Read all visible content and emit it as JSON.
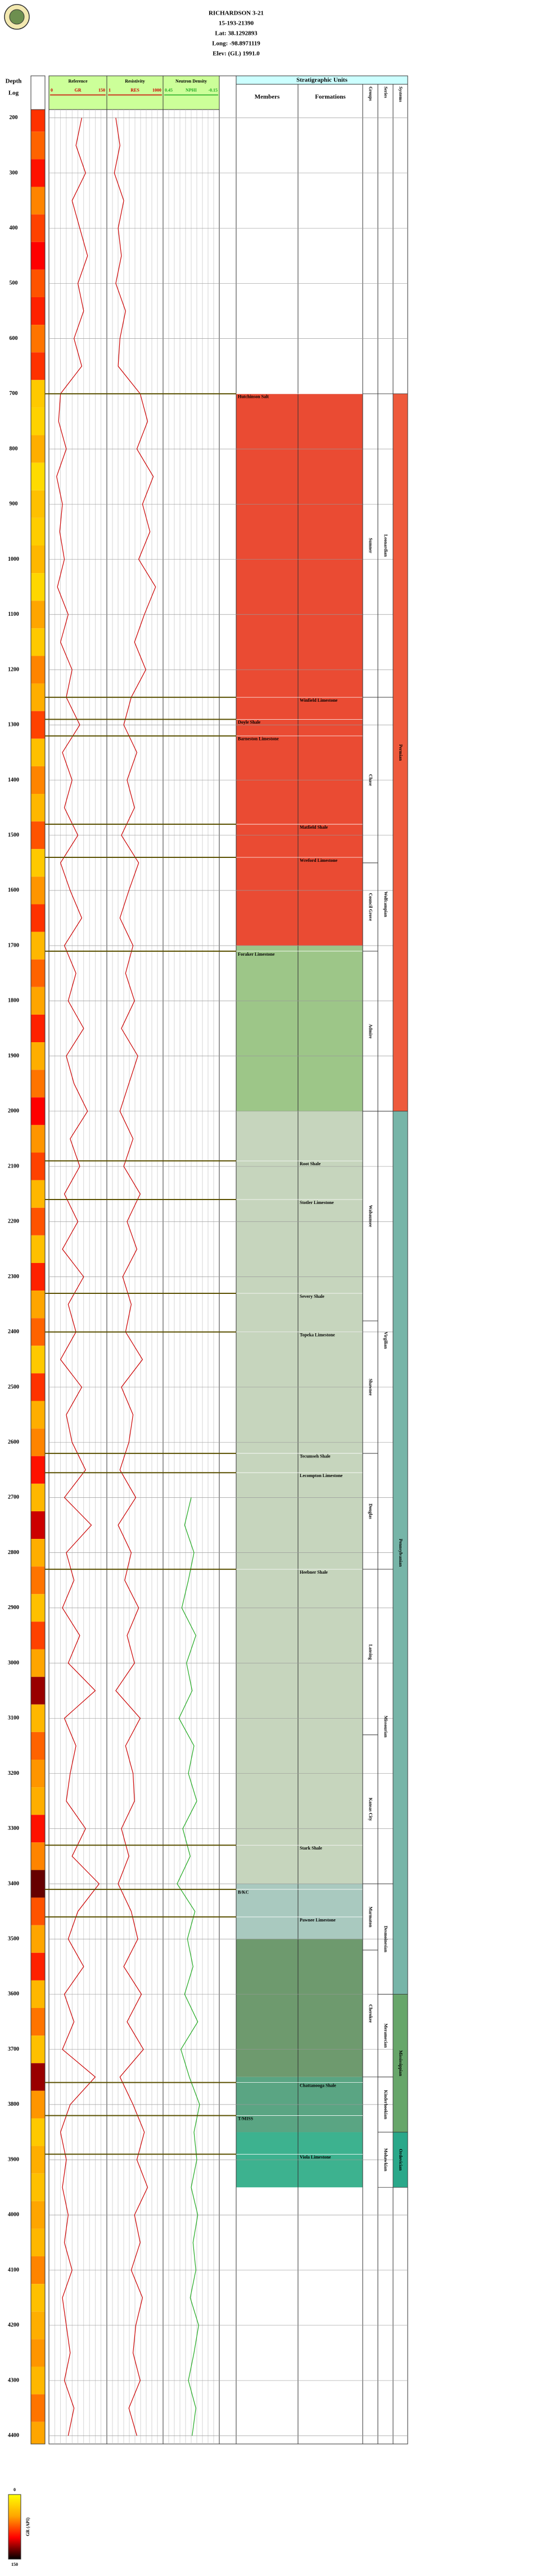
{
  "header": {
    "title": "RICHARDSON 3-21",
    "lines": [
      "15-193-21390",
      "Lat: 38.1292893",
      "Long: -98.8971119",
      "Elev: (GL) 1991.0"
    ]
  },
  "chart_data": {
    "type": "well-log",
    "depth_label": "Depth",
    "log_label": "Log",
    "ylim": [
      185,
      4415
    ],
    "yticks": [
      200,
      300,
      400,
      500,
      600,
      700,
      800,
      900,
      1000,
      1100,
      1200,
      1300,
      1400,
      1500,
      1600,
      1700,
      1800,
      1900,
      2000,
      2100,
      2200,
      2300,
      2400,
      2500,
      2600,
      2700,
      2800,
      2900,
      3000,
      3100,
      3200,
      3300,
      3400,
      3500,
      3600,
      3700,
      3800,
      3900,
      4000,
      4100,
      4200,
      4300,
      4400
    ],
    "grid": true,
    "depths": [
      200,
      250,
      300,
      350,
      400,
      450,
      500,
      550,
      600,
      650,
      700,
      750,
      800,
      850,
      900,
      950,
      1000,
      1050,
      1100,
      1150,
      1200,
      1250,
      1300,
      1350,
      1400,
      1450,
      1500,
      1550,
      1600,
      1650,
      1700,
      1750,
      1800,
      1850,
      1900,
      1950,
      2000,
      2050,
      2100,
      2150,
      2200,
      2250,
      2300,
      2350,
      2400,
      2450,
      2500,
      2550,
      2600,
      2650,
      2700,
      2750,
      2800,
      2850,
      2900,
      2950,
      3000,
      3050,
      3100,
      3150,
      3200,
      3250,
      3300,
      3350,
      3400,
      3450,
      3500,
      3550,
      3600,
      3650,
      3700,
      3750,
      3800,
      3850,
      3900,
      3950,
      4000,
      4050,
      4100,
      4150,
      4200,
      4250,
      4300,
      4350,
      4400
    ],
    "tracks": [
      {
        "name": "Reference",
        "curve": "GR",
        "color": "#cc0000",
        "log_scale": false,
        "xlim": [
          0,
          150
        ],
        "xticks": [
          0,
          150
        ],
        "values": [
          85,
          70,
          95,
          60,
          80,
          100,
          75,
          90,
          65,
          85,
          30,
          25,
          45,
          20,
          35,
          28,
          40,
          22,
          50,
          30,
          60,
          45,
          80,
          35,
          60,
          40,
          75,
          30,
          55,
          85,
          40,
          70,
          50,
          90,
          45,
          65,
          100,
          55,
          80,
          40,
          75,
          35,
          90,
          50,
          70,
          30,
          85,
          45,
          60,
          95,
          40,
          110,
          45,
          65,
          35,
          80,
          50,
          120,
          40,
          70,
          55,
          45,
          95,
          60,
          130,
          75,
          50,
          90,
          40,
          65,
          35,
          120,
          55,
          30,
          45,
          35,
          50,
          40,
          60,
          35,
          45,
          55,
          40,
          65,
          50
        ]
      },
      {
        "name": "Resistivity",
        "curve": "RES",
        "color": "#cc0000",
        "log_scale": true,
        "xlim": [
          1,
          1000
        ],
        "xticks": [
          1,
          1000
        ],
        "values": [
          3,
          5,
          2.5,
          8,
          4,
          6,
          3,
          10,
          5,
          4,
          60,
          150,
          40,
          300,
          80,
          200,
          50,
          400,
          100,
          30,
          120,
          20,
          8,
          40,
          12,
          30,
          6,
          50,
          15,
          5,
          25,
          10,
          30,
          6,
          45,
          15,
          5,
          25,
          8,
          60,
          12,
          40,
          7,
          20,
          10,
          80,
          6,
          25,
          15,
          5,
          35,
          4,
          20,
          9,
          50,
          12,
          30,
          3,
          60,
          10,
          25,
          30,
          6,
          15,
          4,
          20,
          45,
          8,
          70,
          12,
          90,
          5,
          25,
          100,
          40,
          150,
          30,
          60,
          20,
          80,
          35,
          25,
          60,
          15,
          40
        ]
      },
      {
        "name": "Neutron Density",
        "curve": "NPHI",
        "color": "#22aa22",
        "log_scale": false,
        "xlim": [
          0.45,
          -0.15
        ],
        "xticks": [
          0.45,
          -0.15
        ],
        "values": [
          null,
          null,
          null,
          null,
          null,
          null,
          null,
          null,
          null,
          null,
          null,
          null,
          null,
          null,
          null,
          null,
          null,
          null,
          null,
          null,
          null,
          null,
          null,
          null,
          null,
          null,
          null,
          null,
          null,
          null,
          null,
          null,
          null,
          null,
          null,
          null,
          null,
          null,
          null,
          null,
          null,
          null,
          null,
          null,
          null,
          null,
          null,
          null,
          null,
          null,
          0.15,
          0.22,
          0.12,
          0.18,
          0.25,
          0.1,
          0.2,
          0.14,
          0.28,
          0.12,
          0.18,
          0.09,
          0.24,
          0.16,
          0.3,
          0.11,
          0.19,
          0.13,
          0.22,
          0.08,
          0.26,
          0.17,
          0.06,
          0.12,
          0.09,
          0.15,
          0.08,
          0.13,
          0.1,
          0.16,
          0.07,
          0.12,
          0.18,
          0.1,
          0.14
        ]
      }
    ],
    "strat": {
      "title": "Stratigraphic Units",
      "columns": [
        "Members",
        "Formations",
        "Groups",
        "Series",
        "Systems"
      ],
      "bands": [
        {
          "top": 700,
          "base": 1700,
          "color": "#ea4b33"
        },
        {
          "top": 1700,
          "base": 2000,
          "color": "#9dc688"
        },
        {
          "top": 2000,
          "base": 3400,
          "color": "#c6d5bd"
        },
        {
          "top": 3400,
          "base": 3500,
          "color": "#a9c9bf"
        },
        {
          "top": 3500,
          "base": 3750,
          "color": "#6e9a6e"
        },
        {
          "top": 3750,
          "base": 3850,
          "color": "#5aa583"
        },
        {
          "top": 3850,
          "base": 3950,
          "color": "#3db28f"
        }
      ],
      "members": [
        {
          "name": "Hutchinson Salt",
          "top": 700,
          "column": 0
        },
        {
          "name": "Winfield Limestone",
          "top": 1250,
          "column": 1
        },
        {
          "name": "Doyle Shale",
          "top": 1290,
          "column": 0
        },
        {
          "name": "Barneston Limestone",
          "top": 1320,
          "column": 0
        },
        {
          "name": "Matfield Shale",
          "top": 1480,
          "column": 1
        },
        {
          "name": "Wreford Limestone",
          "top": 1540,
          "column": 1
        },
        {
          "name": "Foraker Limestone",
          "top": 1710,
          "column": 0
        },
        {
          "name": "Root Shale",
          "top": 2090,
          "column": 1
        },
        {
          "name": "Stotler Limestone",
          "top": 2160,
          "column": 1
        },
        {
          "name": "Severy Shale",
          "top": 2330,
          "column": 1
        },
        {
          "name": "Topeka Limestone",
          "top": 2400,
          "column": 1
        },
        {
          "name": "Tecumseh Shale",
          "top": 2620,
          "column": 1
        },
        {
          "name": "Lecompton Limestone",
          "top": 2655,
          "column": 1
        },
        {
          "name": "Heebner Shale",
          "top": 2830,
          "column": 1
        },
        {
          "name": "Stark Shale",
          "top": 3330,
          "column": 1
        },
        {
          "name": "B/KC",
          "top": 3410,
          "column": 0
        },
        {
          "name": "Pawnee Limestone",
          "top": 3460,
          "column": 1
        },
        {
          "name": "Chattanooga Shale",
          "top": 3760,
          "column": 1
        },
        {
          "name": "T/MISS",
          "top": 3820,
          "column": 0
        },
        {
          "name": "Viola Limestone",
          "top": 3890,
          "column": 1
        }
      ],
      "units": [
        {
          "column": 2,
          "name": "Sumner",
          "top": 700,
          "base": 1250
        },
        {
          "column": 2,
          "name": "Chase",
          "top": 1250,
          "base": 1550
        },
        {
          "column": 2,
          "name": "Council Grove",
          "top": 1550,
          "base": 1710
        },
        {
          "column": 2,
          "name": "Admire",
          "top": 1710,
          "base": 2000
        },
        {
          "column": 2,
          "name": "Wabaunsee",
          "top": 2000,
          "base": 2380
        },
        {
          "column": 2,
          "name": "Shawnee",
          "top": 2380,
          "base": 2620
        },
        {
          "column": 2,
          "name": "Douglas",
          "top": 2620,
          "base": 2830
        },
        {
          "column": 2,
          "name": "Lansing",
          "top": 2830,
          "base": 3130
        },
        {
          "column": 2,
          "name": "Kansas City",
          "top": 3130,
          "base": 3400
        },
        {
          "column": 2,
          "name": "Marmaton",
          "top": 3400,
          "base": 3520
        },
        {
          "column": 2,
          "name": "Cherokee",
          "top": 3520,
          "base": 3750
        },
        {
          "column": 3,
          "name": "Leonardian",
          "top": 700,
          "base": 1250
        },
        {
          "column": 3,
          "name": "Wolfcampian",
          "top": 1250,
          "base": 2000
        },
        {
          "column": 3,
          "name": "Virgilian",
          "top": 2000,
          "base": 2830
        },
        {
          "column": 3,
          "name": "Missourian",
          "top": 2830,
          "base": 3400
        },
        {
          "column": 3,
          "name": "Desmoinesian",
          "top": 3400,
          "base": 3600
        },
        {
          "column": 3,
          "name": "Meramecian",
          "top": 3600,
          "base": 3750
        },
        {
          "column": 3,
          "name": "Kinderhookian",
          "top": 3750,
          "base": 3850
        },
        {
          "column": 3,
          "name": "Mohawkian",
          "top": 3850,
          "base": 3950
        },
        {
          "column": 4,
          "name": "Permian",
          "top": 700,
          "base": 2000,
          "color": "#ee5a3c"
        },
        {
          "column": 4,
          "name": "Pennsylvanian",
          "top": 2000,
          "base": 3600,
          "color": "#77b5a8"
        },
        {
          "column": 4,
          "name": "Mississippian",
          "top": 3600,
          "base": 3850,
          "color": "#67a66a"
        },
        {
          "column": 4,
          "name": "Ordovician",
          "top": 3850,
          "base": 3950,
          "color": "#2aa88a"
        }
      ]
    },
    "colorbar": {
      "label": "GR (API)",
      "ticks": [
        0,
        150
      ],
      "colors": [
        "#ffff00",
        "#ffa500",
        "#ff0000",
        "#000000"
      ]
    }
  }
}
